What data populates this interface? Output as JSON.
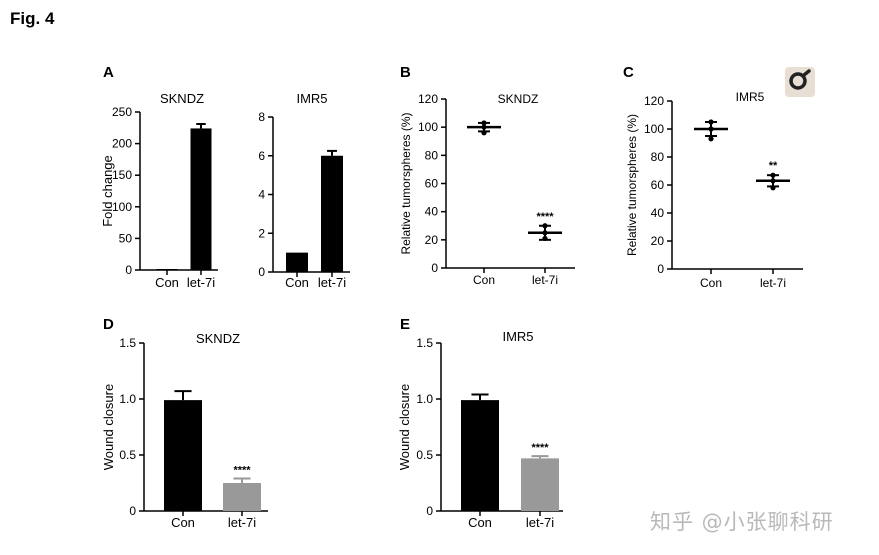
{
  "figure_title": "Fig. 4",
  "panels": {
    "A": "A",
    "B": "B",
    "C": "C",
    "D": "D",
    "E": "E"
  },
  "watermark": "知乎 @小张聊科研",
  "icons": {
    "zoom": "magnifier-icon"
  },
  "colors": {
    "black_bar": "#000000",
    "gray_bar": "#999999",
    "zoom_bg": "#e9ded3"
  },
  "chart_data": [
    {
      "id": "A1",
      "type": "bar",
      "title": "SKNDZ",
      "xlabel": "",
      "ylabel": "Fold change",
      "categories": [
        "Con",
        "let-7i"
      ],
      "values": [
        1,
        224
      ],
      "errors": [
        0,
        7
      ],
      "colors": [
        "#000000",
        "#000000"
      ],
      "ylim": [
        0,
        250
      ],
      "yticks": [
        0,
        50,
        100,
        150,
        200,
        250
      ],
      "annotations": [
        "",
        ""
      ]
    },
    {
      "id": "A2",
      "type": "bar",
      "title": "IMR5",
      "xlabel": "",
      "ylabel": "",
      "categories": [
        "Con",
        "let-7i"
      ],
      "values": [
        1,
        6
      ],
      "errors": [
        0,
        0.25
      ],
      "colors": [
        "#000000",
        "#000000"
      ],
      "ylim": [
        0,
        8
      ],
      "yticks": [
        0,
        2,
        4,
        6,
        8
      ],
      "annotations": [
        "",
        ""
      ]
    },
    {
      "id": "B",
      "type": "scatter",
      "title": "SKNDZ",
      "xlabel": "",
      "ylabel": "Relative tumorspheres (%)",
      "categories": [
        "Con",
        "let-7i"
      ],
      "means": [
        100,
        25
      ],
      "errors": [
        3,
        5
      ],
      "points": [
        [
          100,
          96,
          103
        ],
        [
          25,
          21,
          30
        ]
      ],
      "ylim": [
        0,
        120
      ],
      "yticks": [
        0,
        20,
        40,
        60,
        80,
        100,
        120
      ],
      "annotations": [
        "",
        "****"
      ]
    },
    {
      "id": "C",
      "type": "scatter",
      "title": "IMR5",
      "xlabel": "",
      "ylabel": "Relative tumorspheres (%)",
      "categories": [
        "Con",
        "let-7i"
      ],
      "means": [
        100,
        63
      ],
      "errors": [
        5,
        4
      ],
      "points": [
        [
          100,
          93,
          105
        ],
        [
          63,
          58,
          67
        ]
      ],
      "ylim": [
        0,
        120
      ],
      "yticks": [
        0,
        20,
        40,
        60,
        80,
        100,
        120
      ],
      "annotations": [
        "",
        "**"
      ]
    },
    {
      "id": "D",
      "type": "bar",
      "title": "SKNDZ",
      "xlabel": "",
      "ylabel": "Wound closure",
      "categories": [
        "Con",
        "let-7i"
      ],
      "values": [
        0.99,
        0.25
      ],
      "errors": [
        0.08,
        0.04
      ],
      "colors": [
        "#000000",
        "#999999"
      ],
      "ylim": [
        0,
        1.5
      ],
      "yticks": [
        "0",
        "0.5",
        "1.0",
        "1.5"
      ],
      "annotations": [
        "",
        "****"
      ]
    },
    {
      "id": "E",
      "type": "bar",
      "title": "IMR5",
      "xlabel": "",
      "ylabel": "Wound closure",
      "categories": [
        "Con",
        "let-7i"
      ],
      "values": [
        0.99,
        0.47
      ],
      "errors": [
        0.05,
        0.02
      ],
      "colors": [
        "#000000",
        "#999999"
      ],
      "ylim": [
        0,
        1.5
      ],
      "yticks": [
        "0",
        "0.5",
        "1.0",
        "1.5"
      ],
      "annotations": [
        "",
        "****"
      ]
    }
  ]
}
